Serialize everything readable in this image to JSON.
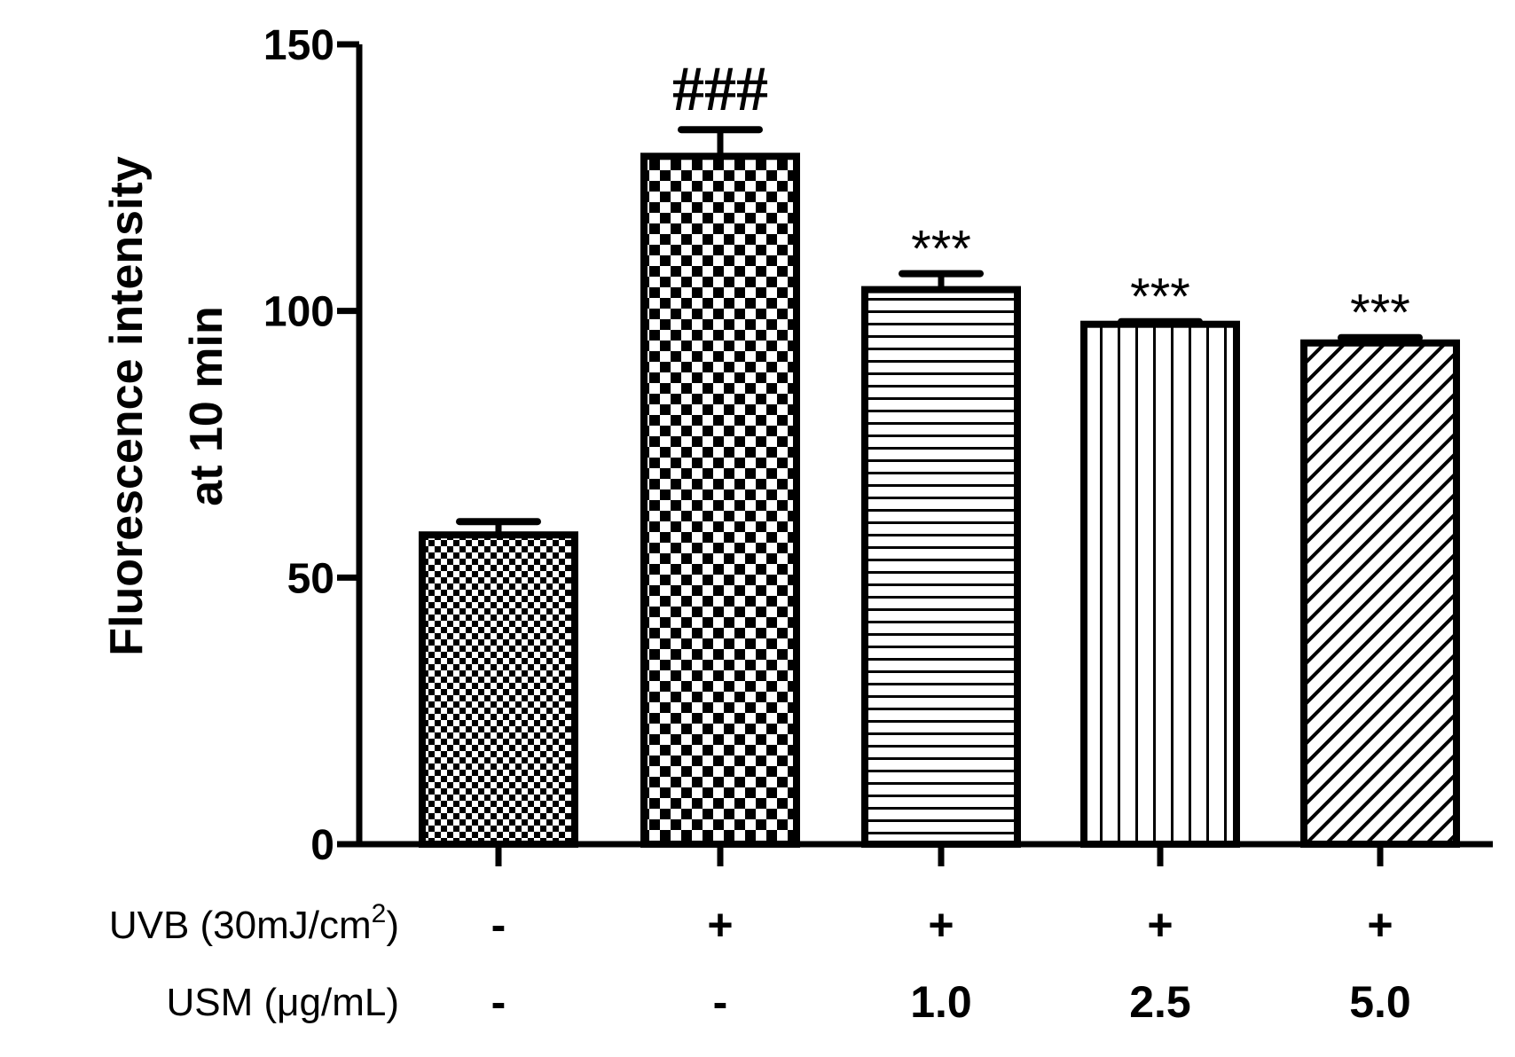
{
  "chart_data": {
    "type": "bar",
    "ylabel_line1": "Fluorescence intensity",
    "ylabel_line2": "at 10 min",
    "ylim": [
      0,
      150
    ],
    "yticks": [
      "0",
      "50",
      "100",
      "150"
    ],
    "values": [
      58,
      129,
      104,
      97.5,
      94
    ],
    "errors": [
      2.5,
      5,
      3,
      0.5,
      1
    ],
    "annotations": [
      "",
      "###",
      "***",
      "***",
      "***"
    ],
    "patterns": [
      "fine-checker",
      "coarse-checker",
      "horizontal-stripes",
      "vertical-stripes",
      "diagonal-stripes"
    ],
    "rows": [
      {
        "label": "UVB (30mJ/cm",
        "sup": "2",
        "label_end": ")",
        "values": [
          "-",
          "+",
          "+",
          "+",
          "+"
        ]
      },
      {
        "label": "USM (μg/mL)",
        "sup": "",
        "label_end": "",
        "values": [
          "-",
          "-",
          "1.0",
          "2.5",
          "5.0"
        ]
      }
    ],
    "grid": false,
    "legend": "none"
  }
}
